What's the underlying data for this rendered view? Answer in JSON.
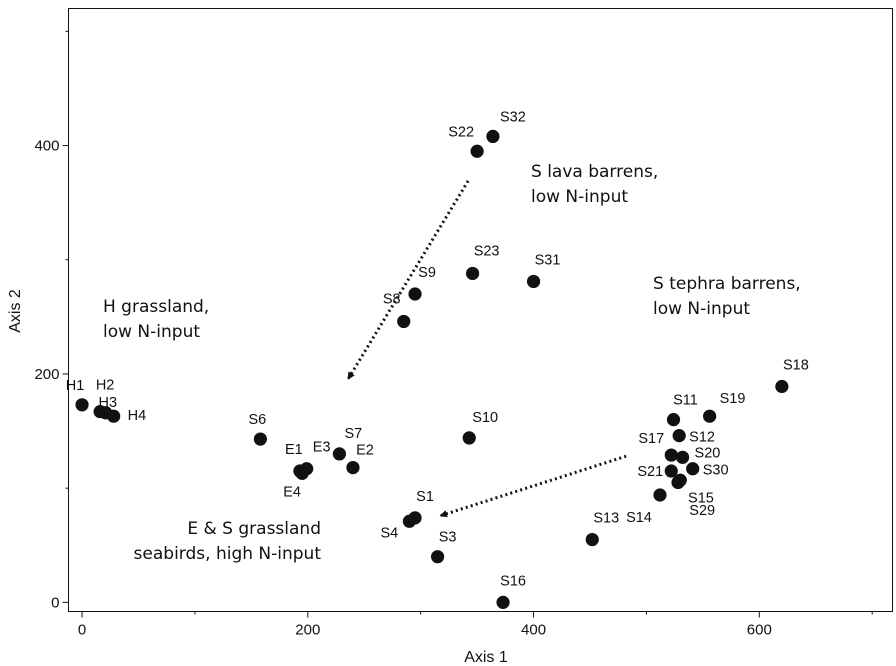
{
  "chart_data": {
    "type": "scatter",
    "xlabel": "Axis 1",
    "ylabel": "Axis 2",
    "xlim": [
      -12,
      718
    ],
    "ylim": [
      -8,
      520
    ],
    "xticks": [
      0,
      200,
      400,
      600
    ],
    "yticks": [
      0,
      200,
      400
    ],
    "xtick_labels": [
      "0",
      "200",
      "400",
      "600"
    ],
    "ytick_labels": [
      "0",
      "200",
      "400"
    ],
    "grid": false,
    "marker_color": "#111111",
    "points": [
      {
        "label": "H1",
        "x": 0,
        "y": 173
      },
      {
        "label": "H2",
        "x": 16,
        "y": 167
      },
      {
        "label": "H3",
        "x": 21,
        "y": 166
      },
      {
        "label": "H4",
        "x": 28,
        "y": 163
      },
      {
        "label": "S6",
        "x": 158,
        "y": 143
      },
      {
        "label": "E1",
        "x": 193,
        "y": 115
      },
      {
        "label": "E3",
        "x": 199,
        "y": 117
      },
      {
        "label": "E4",
        "x": 195,
        "y": 113
      },
      {
        "label": "S7",
        "x": 228,
        "y": 130
      },
      {
        "label": "E2",
        "x": 240,
        "y": 118
      },
      {
        "label": "S8",
        "x": 285,
        "y": 246
      },
      {
        "label": "S9",
        "x": 295,
        "y": 270
      },
      {
        "label": "S1",
        "x": 295,
        "y": 74
      },
      {
        "label": "S4",
        "x": 290,
        "y": 71
      },
      {
        "label": "S3",
        "x": 315,
        "y": 40
      },
      {
        "label": "S10",
        "x": 343,
        "y": 144
      },
      {
        "label": "S23",
        "x": 346,
        "y": 288
      },
      {
        "label": "S22",
        "x": 350,
        "y": 395
      },
      {
        "label": "S32",
        "x": 364,
        "y": 408
      },
      {
        "label": "S31",
        "x": 400,
        "y": 281
      },
      {
        "label": "S16",
        "x": 373,
        "y": 0
      },
      {
        "label": "S13",
        "x": 452,
        "y": 55
      },
      {
        "label": "S14",
        "x": 512,
        "y": 94
      },
      {
        "label": "S11",
        "x": 524,
        "y": 160
      },
      {
        "label": "S12",
        "x": 529,
        "y": 146
      },
      {
        "label": "S17",
        "x": 522,
        "y": 129
      },
      {
        "label": "S20",
        "x": 532,
        "y": 127
      },
      {
        "label": "S21",
        "x": 522,
        "y": 115
      },
      {
        "label": "S30",
        "x": 541,
        "y": 117
      },
      {
        "label": "S15",
        "x": 528,
        "y": 105
      },
      {
        "label": "S29",
        "x": 530,
        "y": 107
      },
      {
        "label": "S19",
        "x": 556,
        "y": 163
      },
      {
        "label": "S18",
        "x": 620,
        "y": 189
      }
    ],
    "annotations": [
      {
        "lines": [
          "S lava barrens,",
          "low N-input"
        ]
      },
      {
        "lines": [
          "H grassland,",
          "low N-input"
        ]
      },
      {
        "lines": [
          "S tephra barrens,",
          "low N-input"
        ]
      },
      {
        "lines": [
          "E & S grassland",
          "seabirds, high N-input"
        ]
      }
    ],
    "arrows": [
      {
        "from": [
          342,
          369
        ],
        "to": [
          236,
          196
        ]
      },
      {
        "from": [
          482,
          128
        ],
        "to": [
          318,
          76
        ]
      }
    ]
  }
}
